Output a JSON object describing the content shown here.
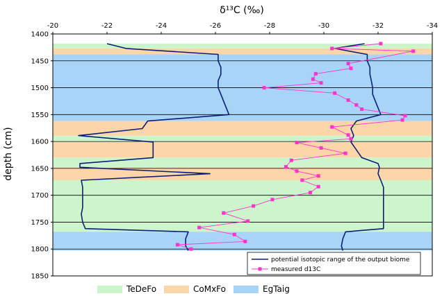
{
  "chart_data": {
    "type": "line",
    "title": "",
    "xlabel": "δ¹³C (‰)",
    "ylabel": "depth (cm)",
    "xlim": [
      -20,
      -34
    ],
    "ylim": [
      1400,
      1850
    ],
    "x_axis_position": "top",
    "x_reversed": true,
    "y_inverted": true,
    "x_ticks": [
      -20,
      -22,
      -24,
      -26,
      -28,
      -30,
      -32,
      -34
    ],
    "y_ticks": [
      1400,
      1450,
      1500,
      1550,
      1600,
      1650,
      1700,
      1750,
      1800,
      1850
    ],
    "grid": "horizontal",
    "biome_colors": {
      "TeDeFo": "#ccf5cc",
      "CoMxFo": "#fcd5a8",
      "EgTaig": "#a8d4f8"
    },
    "biome_bands": [
      {
        "biome": "TeDeFo",
        "from": 1418,
        "to": 1427
      },
      {
        "biome": "CoMxFo",
        "from": 1427,
        "to": 1438
      },
      {
        "biome": "EgTaig",
        "from": 1438,
        "to": 1562
      },
      {
        "biome": "CoMxFo",
        "from": 1562,
        "to": 1589
      },
      {
        "biome": "TeDeFo",
        "from": 1589,
        "to": 1601
      },
      {
        "biome": "CoMxFo",
        "from": 1601,
        "to": 1630
      },
      {
        "biome": "TeDeFo",
        "from": 1630,
        "to": 1648
      },
      {
        "biome": "CoMxFo",
        "from": 1648,
        "to": 1672
      },
      {
        "biome": "TeDeFo",
        "from": 1672,
        "to": 1768
      },
      {
        "biome": "EgTaig",
        "from": 1768,
        "to": 1803
      }
    ],
    "series": [
      {
        "name": "potential isotopic range of the output biome",
        "color": "#0a1e78",
        "marker": "none",
        "x_left": [
          -22.0,
          -22.7,
          -26.1,
          -26.1,
          -26.2,
          -26.2,
          -26.1,
          -26.1,
          -26.2,
          -26.3,
          -26.5,
          -23.5,
          -23.3,
          -20.95,
          -23.7,
          -23.7,
          -21.0,
          -21.0,
          -25.8,
          -21.05,
          -21.1,
          -21.1,
          -21.1,
          -21.1,
          -21.05,
          -21.1,
          -21.2,
          -25.0,
          -24.9,
          -24.9,
          -25.0
        ],
        "x_right": [
          -31.5,
          -30.4,
          -31.6,
          -31.6,
          -31.7,
          -31.7,
          -31.75,
          -31.8,
          -31.8,
          -31.9,
          -32.1,
          -31.2,
          -31.0,
          -31.1,
          -31.0,
          -31.4,
          -32.0,
          -32.05,
          -32.0,
          -32.1,
          -32.2,
          -32.2,
          -32.2,
          -32.2,
          -32.2,
          -32.2,
          -32.2,
          -30.8,
          -30.7,
          -30.65,
          -30.7
        ],
        "y": [
          1418,
          1427,
          1438,
          1450,
          1462,
          1475,
          1487,
          1500,
          1512,
          1525,
          1550,
          1562,
          1576,
          1589,
          1601,
          1630,
          1641,
          1648,
          1660,
          1672,
          1685,
          1698,
          1710,
          1723,
          1735,
          1750,
          1762,
          1768,
          1781,
          1794,
          1803
        ]
      },
      {
        "name": "measured d13C",
        "color": "#ff33cc",
        "marker": "square",
        "x": [
          -32.1,
          -30.3,
          -33.3,
          -30.9,
          -31.0,
          -29.7,
          -29.6,
          -29.9,
          -27.8,
          -30.4,
          -30.9,
          -31.2,
          -31.4,
          -33.0,
          -32.9,
          -30.3,
          -30.9,
          -31.0,
          -29.0,
          -29.9,
          -30.8,
          -28.8,
          -28.6,
          -29.0,
          -29.8,
          -29.2,
          -29.8,
          -29.5,
          -28.1,
          -27.4,
          -26.3,
          -27.2,
          -25.4,
          -26.7,
          -27.1,
          -24.6,
          -25.1
        ],
        "y": [
          1418,
          1427,
          1432,
          1455,
          1464,
          1474,
          1484,
          1491,
          1500,
          1510,
          1523,
          1532,
          1540,
          1552,
          1560,
          1573,
          1588,
          1595,
          1602,
          1612,
          1622,
          1635,
          1647,
          1655,
          1664,
          1672,
          1684,
          1695,
          1708,
          1720,
          1733,
          1748,
          1760,
          1773,
          1786,
          1792,
          1800
        ]
      }
    ],
    "legend_location": "bottom-right",
    "biome_legend_location": "below"
  }
}
